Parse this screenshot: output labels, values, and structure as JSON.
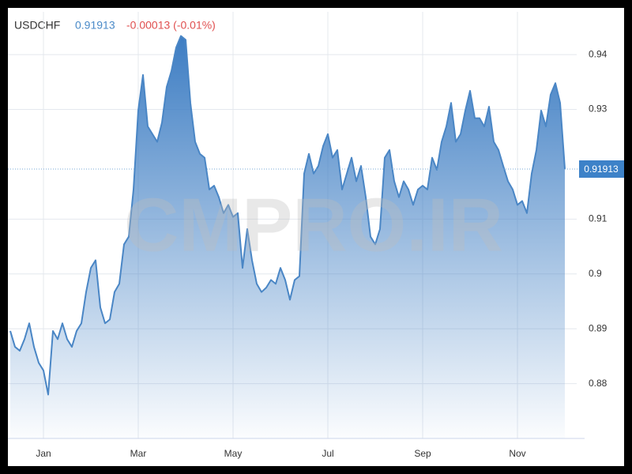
{
  "chart_data": {
    "type": "area",
    "title": "USDCHF",
    "last_price": "0.91913",
    "change": "-0.00013 (-0.01%)",
    "last_price_label": "0.91913",
    "watermark": "CMPRO.IR",
    "color": "#4a86c5",
    "grid": true,
    "ylim": [
      0.87,
      0.9478
    ],
    "yticks": [
      0.88,
      0.89,
      0.9,
      0.91,
      0.93,
      0.94
    ],
    "categories": [
      null,
      null,
      null,
      null,
      null,
      null,
      null,
      "Jan",
      null,
      null,
      null,
      null,
      null,
      null,
      null,
      null,
      null,
      null,
      null,
      null,
      null,
      null,
      null,
      null,
      null,
      null,
      null,
      "Mar",
      null,
      null,
      null,
      null,
      null,
      null,
      null,
      null,
      null,
      null,
      null,
      null,
      null,
      null,
      null,
      null,
      null,
      null,
      null,
      "May",
      null,
      null,
      null,
      null,
      null,
      null,
      null,
      null,
      null,
      null,
      null,
      null,
      null,
      null,
      null,
      null,
      null,
      null,
      null,
      "Jul",
      null,
      null,
      null,
      null,
      null,
      null,
      null,
      null,
      null,
      null,
      null,
      null,
      null,
      null,
      null,
      null,
      null,
      null,
      null,
      "Sep",
      null,
      null,
      null,
      null,
      null,
      null,
      null,
      null,
      null,
      null,
      null,
      null,
      null,
      null,
      null,
      null,
      null,
      null,
      null,
      "Nov",
      null,
      null,
      null,
      null,
      null,
      null,
      null,
      null,
      null,
      null
    ],
    "values": [
      0.8896,
      0.8867,
      0.886,
      0.8881,
      0.891,
      0.8867,
      0.8838,
      0.8824,
      0.878,
      0.8896,
      0.8881,
      0.891,
      0.8881,
      0.8867,
      0.8896,
      0.891,
      0.8967,
      0.9011,
      0.9025,
      0.8939,
      0.891,
      0.8917,
      0.8967,
      0.8982,
      0.9054,
      0.9068,
      0.9154,
      0.9298,
      0.9363,
      0.9269,
      0.9255,
      0.9241,
      0.9276,
      0.9341,
      0.937,
      0.9413,
      0.9434,
      0.9427,
      0.9312,
      0.9241,
      0.9219,
      0.9212,
      0.9154,
      0.9161,
      0.914,
      0.9111,
      0.9126,
      0.9104,
      0.9111,
      0.9011,
      0.9082,
      0.9025,
      0.8982,
      0.8967,
      0.8975,
      0.8989,
      0.8982,
      0.9011,
      0.8989,
      0.8953,
      0.8989,
      0.8996,
      0.9183,
      0.9219,
      0.9183,
      0.9197,
      0.9233,
      0.9255,
      0.9212,
      0.9226,
      0.9154,
      0.9183,
      0.9212,
      0.9169,
      0.9197,
      0.914,
      0.9068,
      0.9054,
      0.9082,
      0.9212,
      0.9226,
      0.9169,
      0.914,
      0.9169,
      0.9154,
      0.9126,
      0.9154,
      0.9161,
      0.9154,
      0.9212,
      0.919,
      0.9241,
      0.9269,
      0.9312,
      0.9241,
      0.9255,
      0.9298,
      0.9334,
      0.9284,
      0.9284,
      0.9269,
      0.9305,
      0.9241,
      0.9226,
      0.9197,
      0.9169,
      0.9154,
      0.9126,
      0.9133,
      0.9111,
      0.9183,
      0.9226,
      0.9298,
      0.9269,
      0.9327,
      0.9348,
      0.9312,
      0.91913
    ]
  }
}
